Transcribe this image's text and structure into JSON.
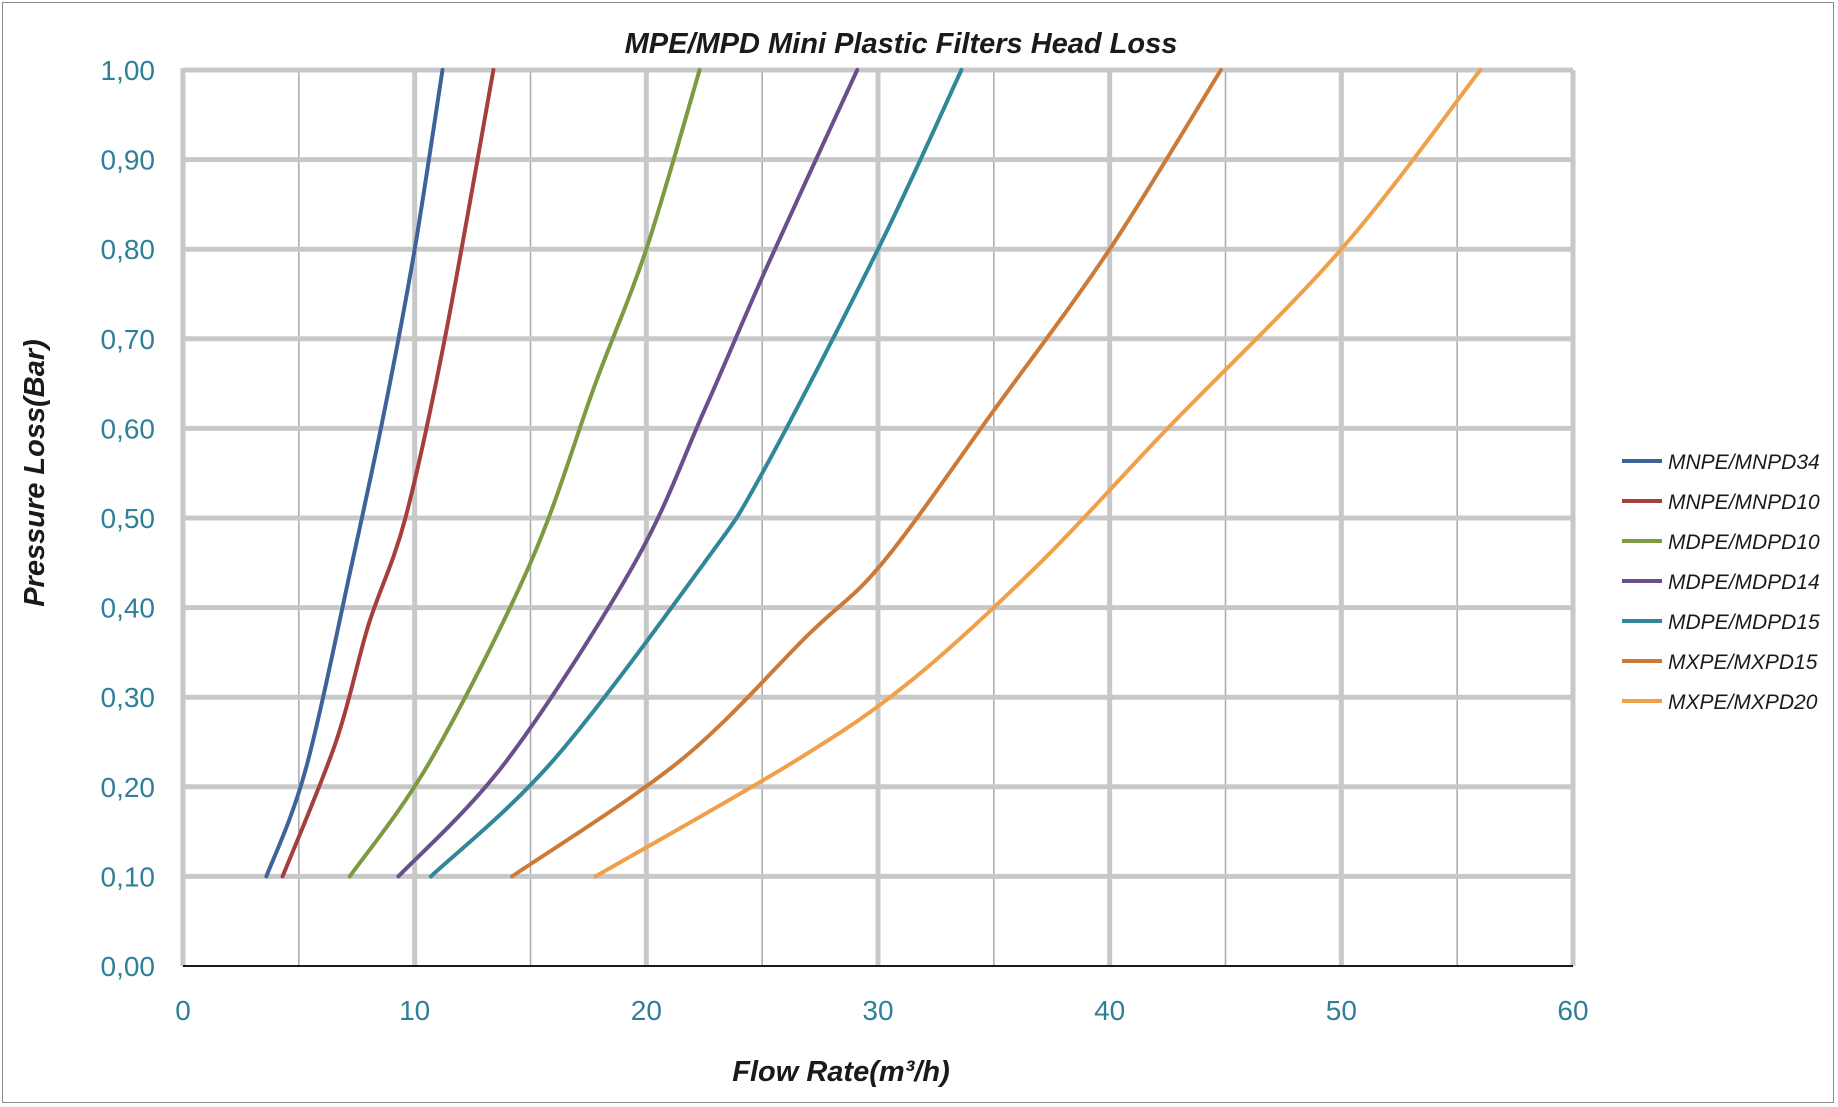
{
  "colors": {
    "tick_text": "#2e7f97",
    "major_grid": "#c8c8c8",
    "minor_grid": "#a8a8a8",
    "axis": "#1a1a1a"
  },
  "chart_data": {
    "type": "line",
    "title": "MPE/MPD Mini Plastic Filters Head Loss",
    "xlabel": "Flow Rate(m³/h)",
    "ylabel": "Pressure Loss(Bar)",
    "xlim": [
      0,
      60
    ],
    "ylim": [
      0,
      1.0
    ],
    "x_ticks": [
      "0",
      "10",
      "20",
      "30",
      "40",
      "50",
      "60"
    ],
    "y_ticks": [
      "0,00",
      "0,10",
      "0,20",
      "0,30",
      "0,40",
      "0,50",
      "0,60",
      "0,70",
      "0,80",
      "0,90",
      "1,00"
    ],
    "grid": true,
    "legend_position": "right",
    "series": [
      {
        "name": "MNPE/MNPD34",
        "color": "#3d6399",
        "x": [
          3.6,
          5.3,
          7.3,
          8.7,
          10.0,
          11.2
        ],
        "y": [
          0.1,
          0.22,
          0.45,
          0.62,
          0.8,
          1.0
        ]
      },
      {
        "name": "MNPE/MNPD10",
        "color": "#a53f3c",
        "x": [
          4.3,
          6.6,
          8.0,
          9.6,
          11.3,
          13.4
        ],
        "y": [
          0.1,
          0.25,
          0.38,
          0.5,
          0.7,
          1.0
        ]
      },
      {
        "name": "MDPE/MDPD10",
        "color": "#7d9a42",
        "x": [
          7.2,
          10.7,
          15.0,
          17.8,
          20.0,
          22.3
        ],
        "y": [
          0.1,
          0.23,
          0.45,
          0.65,
          0.8,
          1.0
        ]
      },
      {
        "name": "MDPE/MDPD14",
        "color": "#6a4f8c",
        "x": [
          9.3,
          14.0,
          19.5,
          22.5,
          25.2,
          29.1
        ],
        "y": [
          0.1,
          0.23,
          0.45,
          0.62,
          0.78,
          1.0
        ]
      },
      {
        "name": "MDPE/MDPD15",
        "color": "#2f8799",
        "x": [
          10.7,
          16.0,
          22.5,
          25.0,
          30.0,
          33.6
        ],
        "y": [
          0.1,
          0.23,
          0.45,
          0.55,
          0.8,
          1.0
        ]
      },
      {
        "name": "MXPE/MXPD15",
        "color": "#cc7a36",
        "x": [
          14.2,
          21.5,
          27.0,
          30.2,
          35.0,
          40.0,
          44.8
        ],
        "y": [
          0.1,
          0.23,
          0.37,
          0.45,
          0.62,
          0.8,
          1.0
        ]
      },
      {
        "name": "MXPE/MXPD20",
        "color": "#f0a04a",
        "x": [
          17.8,
          26.5,
          31.5,
          37.0,
          42.5,
          50.0,
          56.0
        ],
        "y": [
          0.1,
          0.23,
          0.32,
          0.45,
          0.6,
          0.8,
          1.0
        ]
      }
    ]
  }
}
